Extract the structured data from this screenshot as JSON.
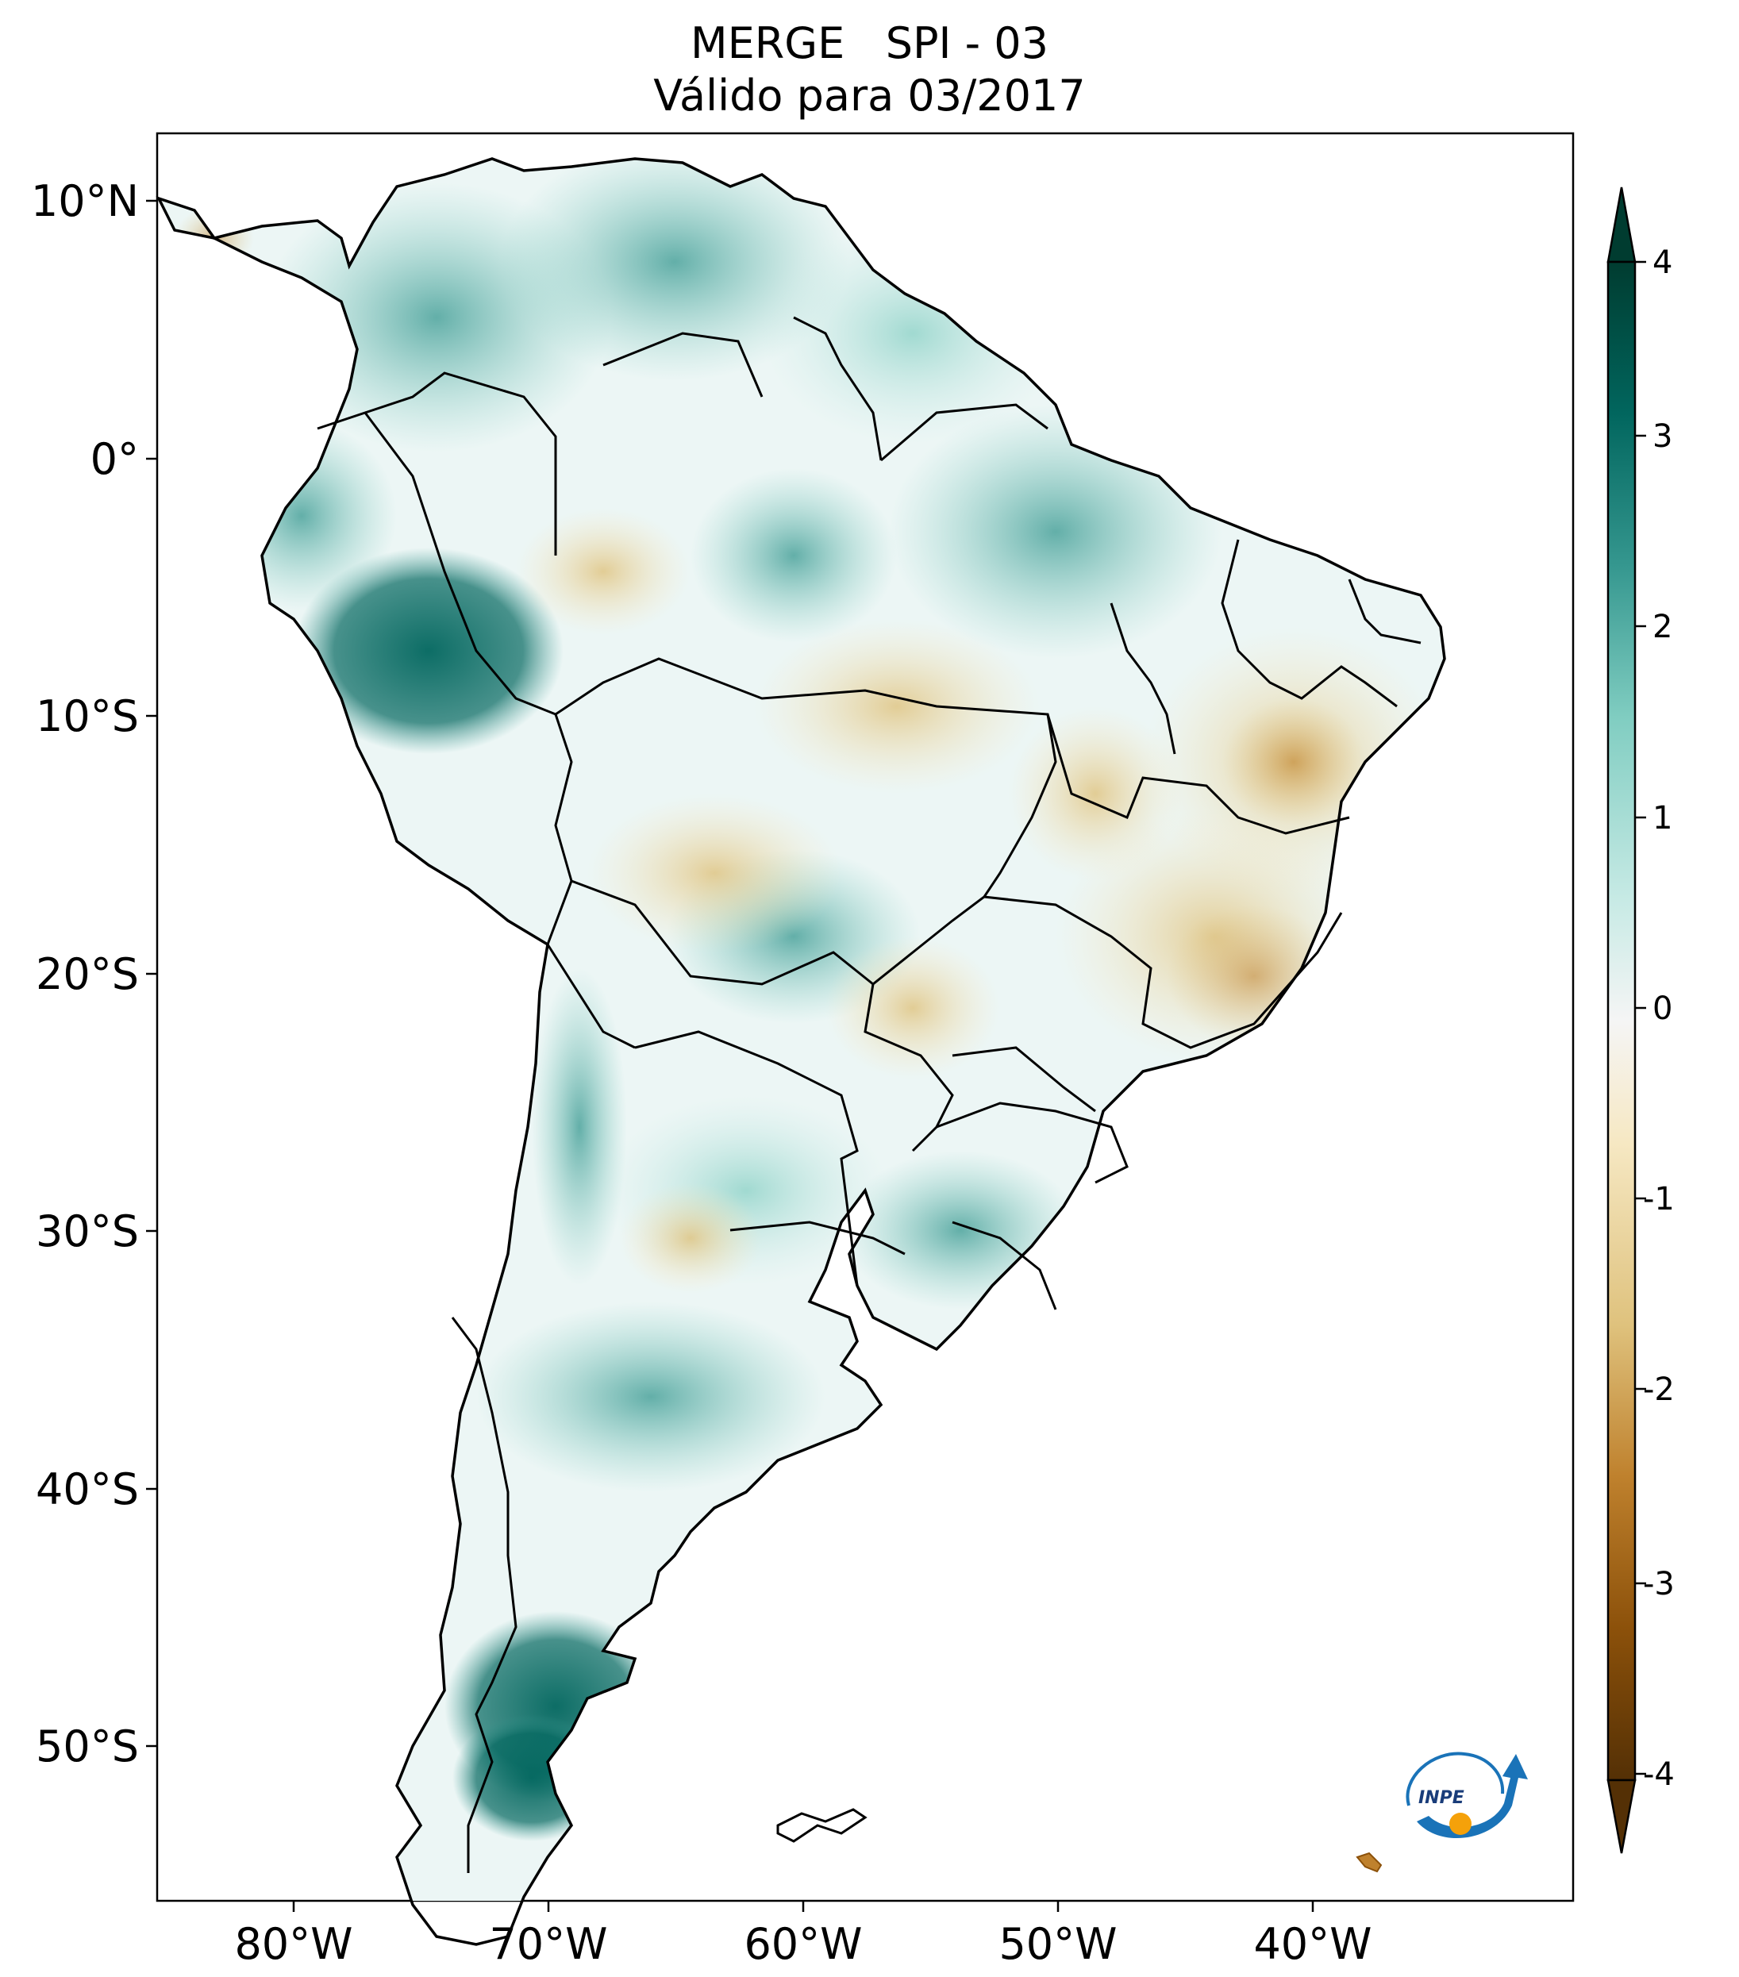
{
  "title": {
    "line1": "MERGE   SPI - 03",
    "line2": "Válido para 03/2017"
  },
  "lat_ticks": [
    "10°N",
    "0°",
    "10°S",
    "20°S",
    "30°S",
    "40°S",
    "50°S"
  ],
  "lon_ticks": [
    "80°W",
    "70°W",
    "60°W",
    "50°W",
    "40°W"
  ],
  "colorbar": {
    "labels": [
      "4",
      "3",
      "2",
      "1",
      "0",
      "-1",
      "-2",
      "-3",
      "-4"
    ],
    "min": -4,
    "max": 4,
    "colors": {
      "max": "#003c30",
      "high": "#01665e",
      "mid_high": "#35978f",
      "low_high": "#80cdc1",
      "light_high": "#c7eae5",
      "neutral": "#f5f5f5",
      "light_low": "#f6e8c3",
      "low_low": "#dfc27d",
      "mid_low": "#bf812d",
      "low": "#8c510a",
      "min": "#543005"
    }
  },
  "logo": {
    "text": "INPE"
  }
}
